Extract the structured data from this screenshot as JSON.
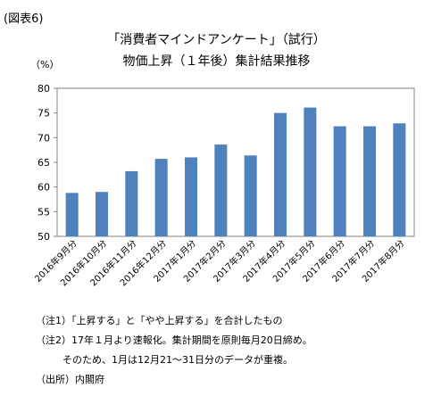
{
  "figure_label": "(図表6)",
  "chart_data": {
    "type": "bar",
    "title_line1": "「消費者マインドアンケート」（試行）",
    "title_line2": "物価上昇（１年後）集計結果推移",
    "ylabel": "（%）",
    "ylim": [
      50,
      80
    ],
    "yticks": [
      50,
      55,
      60,
      65,
      70,
      75,
      80
    ],
    "grid": false,
    "legend": "none",
    "categories": [
      "2016年9月分",
      "2016年10月分",
      "2016年11月分",
      "2016年12月分",
      "2017年1月分",
      "2017年2月分",
      "2017年3月分",
      "2017年4月分",
      "2017年5月分",
      "2017年6月分",
      "2017年7月分",
      "2017年8月分"
    ],
    "values": [
      58.8,
      59.0,
      63.2,
      65.7,
      66.0,
      68.6,
      66.4,
      75.0,
      76.1,
      72.3,
      72.3,
      72.9
    ],
    "bar_color": "#4f81bd"
  },
  "notes": {
    "note1": "（注1）「上昇する」と「やや上昇する」を合計したもの",
    "note2": "（注2）17年１月より速報化。集計期間を原則毎月20日締め。",
    "note2_cont": "そのため、1月は12月21～31日分のデータが重複。",
    "source": "（出所）内閣府"
  }
}
